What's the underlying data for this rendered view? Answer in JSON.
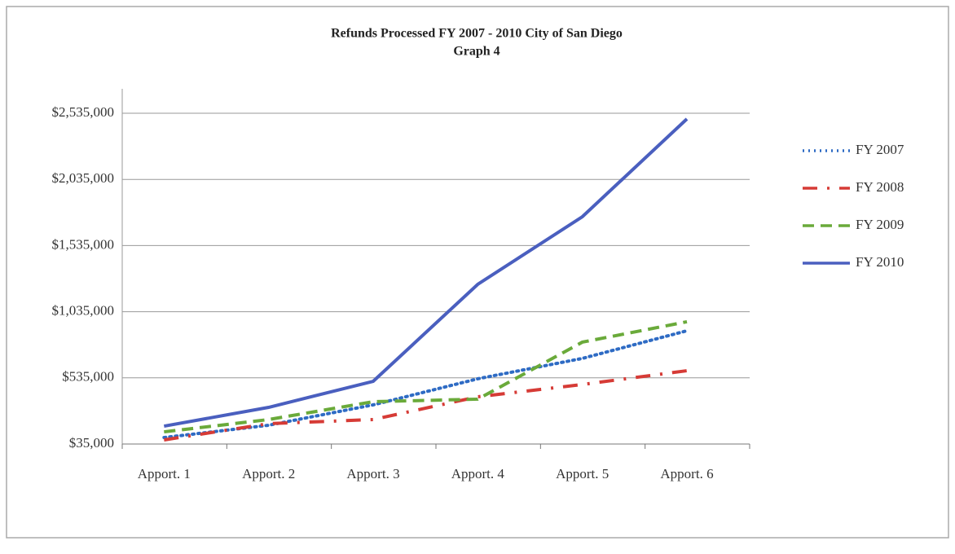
{
  "chart_data": {
    "type": "line",
    "title": "Refunds Processed FY 2007 - 2010 City of San Diego",
    "subtitle": "Graph 4",
    "categories": [
      "Apport. 1",
      "Apport. 2",
      "Apport. 3",
      "Apport. 4",
      "Apport. 5",
      "Apport. 6"
    ],
    "series": [
      {
        "name": "FY 2007",
        "color": "#2e6bc4",
        "style": "dotted",
        "values": [
          84000,
          177000,
          331000,
          528000,
          682000,
          891000
        ]
      },
      {
        "name": "FY 2008",
        "color": "#d63b36",
        "style": "dash-dot",
        "values": [
          66000,
          189000,
          220000,
          392000,
          485000,
          589000
        ]
      },
      {
        "name": "FY 2009",
        "color": "#6aaa3a",
        "style": "dashed",
        "values": [
          127000,
          220000,
          355000,
          374000,
          805000,
          959000
        ]
      },
      {
        "name": "FY 2010",
        "color": "#4a5fbf",
        "style": "solid",
        "values": [
          170000,
          312000,
          509000,
          1242000,
          1753000,
          2492000
        ]
      }
    ],
    "ylim": [
      35000,
      2535000
    ],
    "yticks": [
      {
        "value": 35000,
        "label": "$35,000"
      },
      {
        "value": 535000,
        "label": "$535,000"
      },
      {
        "value": 1035000,
        "label": "$1,035,000"
      },
      {
        "value": 1535000,
        "label": "$1,535,000"
      },
      {
        "value": 2035000,
        "label": "$2,035,000"
      },
      {
        "value": 2535000,
        "label": "$2,535,000"
      }
    ],
    "grid": true,
    "legend": "right"
  }
}
